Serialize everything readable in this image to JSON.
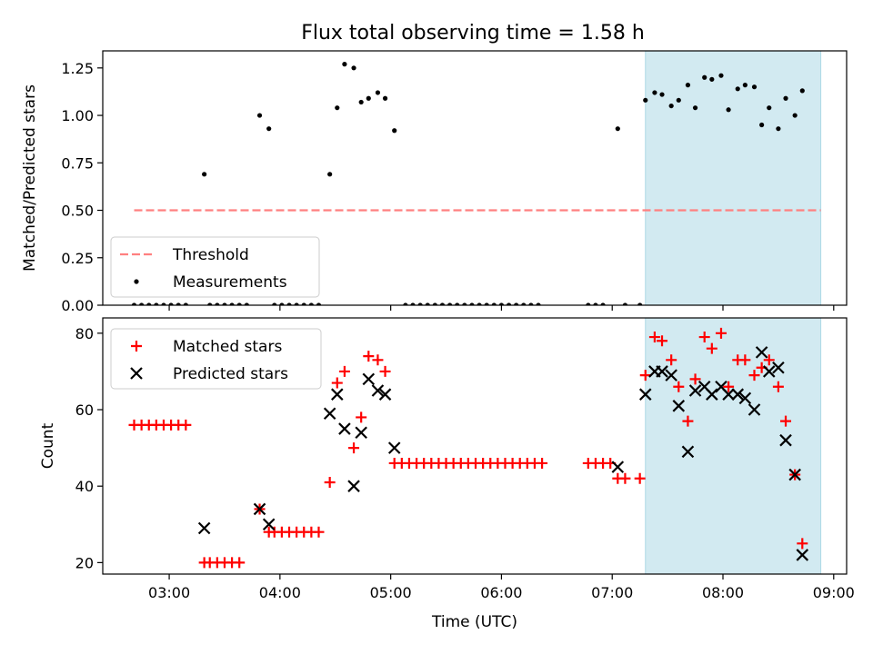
{
  "figure": {
    "title": "Flux total observing time = 1.58 h"
  },
  "chart_data": [
    {
      "type": "scatter",
      "ylabel": "Matched/Predicted stars",
      "ylim": [
        0,
        1.34
      ],
      "xlim": [
        "02:24",
        "09:07"
      ],
      "yticks": [
        0,
        0.25,
        0.5,
        0.75,
        1.0,
        1.25
      ],
      "ytick_labels": [
        "0.00",
        "0.25",
        "0.50",
        "0.75",
        "1.00",
        "1.25"
      ],
      "highlight_span": {
        "x0": "07:18",
        "x1": "08:53",
        "color": "#add8e6"
      },
      "threshold": {
        "name": "Threshold",
        "y": 0.5,
        "x0": "02:41",
        "x1": "08:53",
        "color": "#ff8080",
        "style": "dashed"
      },
      "legend": {
        "placement": "lower-left",
        "entries": [
          "Threshold",
          "Measurements"
        ]
      },
      "series": [
        {
          "name": "Measurements",
          "color": "#000000",
          "marker": "dot",
          "points": [
            {
              "x": "02:41",
              "y": 0
            },
            {
              "x": "02:45",
              "y": 0
            },
            {
              "x": "02:49",
              "y": 0
            },
            {
              "x": "02:53",
              "y": 0
            },
            {
              "x": "02:57",
              "y": 0
            },
            {
              "x": "03:01",
              "y": 0
            },
            {
              "x": "03:05",
              "y": 0
            },
            {
              "x": "03:09",
              "y": 0
            },
            {
              "x": "03:19",
              "y": 0.69
            },
            {
              "x": "03:22",
              "y": 0
            },
            {
              "x": "03:26",
              "y": 0
            },
            {
              "x": "03:30",
              "y": 0
            },
            {
              "x": "03:34",
              "y": 0
            },
            {
              "x": "03:38",
              "y": 0
            },
            {
              "x": "03:42",
              "y": 0
            },
            {
              "x": "03:49",
              "y": 1.0
            },
            {
              "x": "03:54",
              "y": 0.93
            },
            {
              "x": "03:57",
              "y": 0
            },
            {
              "x": "04:01",
              "y": 0
            },
            {
              "x": "04:05",
              "y": 0
            },
            {
              "x": "04:09",
              "y": 0
            },
            {
              "x": "04:13",
              "y": 0
            },
            {
              "x": "04:17",
              "y": 0
            },
            {
              "x": "04:21",
              "y": 0
            },
            {
              "x": "04:27",
              "y": 0.69
            },
            {
              "x": "04:31",
              "y": 1.04
            },
            {
              "x": "04:35",
              "y": 1.27
            },
            {
              "x": "04:40",
              "y": 1.25
            },
            {
              "x": "04:44",
              "y": 1.07
            },
            {
              "x": "04:48",
              "y": 1.09
            },
            {
              "x": "04:53",
              "y": 1.12
            },
            {
              "x": "04:57",
              "y": 1.09
            },
            {
              "x": "05:02",
              "y": 0.92
            },
            {
              "x": "05:08",
              "y": 0
            },
            {
              "x": "05:12",
              "y": 0
            },
            {
              "x": "05:16",
              "y": 0
            },
            {
              "x": "05:20",
              "y": 0
            },
            {
              "x": "05:24",
              "y": 0
            },
            {
              "x": "05:28",
              "y": 0
            },
            {
              "x": "05:32",
              "y": 0
            },
            {
              "x": "05:36",
              "y": 0
            },
            {
              "x": "05:40",
              "y": 0
            },
            {
              "x": "05:44",
              "y": 0
            },
            {
              "x": "05:48",
              "y": 0
            },
            {
              "x": "05:52",
              "y": 0
            },
            {
              "x": "05:56",
              "y": 0
            },
            {
              "x": "06:00",
              "y": 0
            },
            {
              "x": "06:04",
              "y": 0
            },
            {
              "x": "06:08",
              "y": 0
            },
            {
              "x": "06:12",
              "y": 0
            },
            {
              "x": "06:16",
              "y": 0
            },
            {
              "x": "06:20",
              "y": 0
            },
            {
              "x": "06:47",
              "y": 0
            },
            {
              "x": "06:51",
              "y": 0
            },
            {
              "x": "06:55",
              "y": 0
            },
            {
              "x": "07:03",
              "y": 0.93
            },
            {
              "x": "07:07",
              "y": 0
            },
            {
              "x": "07:15",
              "y": 0
            },
            {
              "x": "07:18",
              "y": 1.08
            },
            {
              "x": "07:23",
              "y": 1.12
            },
            {
              "x": "07:27",
              "y": 1.11
            },
            {
              "x": "07:32",
              "y": 1.05
            },
            {
              "x": "07:36",
              "y": 1.08
            },
            {
              "x": "07:41",
              "y": 1.16
            },
            {
              "x": "07:45",
              "y": 1.04
            },
            {
              "x": "07:50",
              "y": 1.2
            },
            {
              "x": "07:54",
              "y": 1.19
            },
            {
              "x": "07:59",
              "y": 1.21
            },
            {
              "x": "08:03",
              "y": 1.03
            },
            {
              "x": "08:08",
              "y": 1.14
            },
            {
              "x": "08:12",
              "y": 1.16
            },
            {
              "x": "08:17",
              "y": 1.15
            },
            {
              "x": "08:21",
              "y": 0.95
            },
            {
              "x": "08:25",
              "y": 1.04
            },
            {
              "x": "08:30",
              "y": 0.93
            },
            {
              "x": "08:34",
              "y": 1.09
            },
            {
              "x": "08:39",
              "y": 1.0
            },
            {
              "x": "08:43",
              "y": 1.13
            }
          ]
        }
      ]
    },
    {
      "type": "scatter",
      "xlabel": "Time (UTC)",
      "ylabel": "Count",
      "ylim": [
        17,
        84
      ],
      "xlim": [
        "02:24",
        "09:07"
      ],
      "yticks": [
        20,
        40,
        60,
        80
      ],
      "ytick_labels": [
        "20",
        "40",
        "60",
        "80"
      ],
      "xticks": [
        "03:00",
        "04:00",
        "05:00",
        "06:00",
        "07:00",
        "08:00",
        "09:00"
      ],
      "xtick_labels": [
        "03:00",
        "04:00",
        "05:00",
        "06:00",
        "07:00",
        "08:00",
        "09:00"
      ],
      "highlight_span": {
        "x0": "07:18",
        "x1": "08:53",
        "color": "#add8e6"
      },
      "legend": {
        "placement": "top-left",
        "entries": [
          "Matched stars",
          "Predicted stars"
        ]
      },
      "series": [
        {
          "name": "Matched stars",
          "color": "#ff0000",
          "marker": "plus",
          "points": [
            {
              "x": "02:41",
              "y": 56
            },
            {
              "x": "02:45",
              "y": 56
            },
            {
              "x": "02:49",
              "y": 56
            },
            {
              "x": "02:53",
              "y": 56
            },
            {
              "x": "02:57",
              "y": 56
            },
            {
              "x": "03:01",
              "y": 56
            },
            {
              "x": "03:05",
              "y": 56
            },
            {
              "x": "03:09",
              "y": 56
            },
            {
              "x": "03:19",
              "y": 20
            },
            {
              "x": "03:22",
              "y": 20
            },
            {
              "x": "03:26",
              "y": 20
            },
            {
              "x": "03:30",
              "y": 20
            },
            {
              "x": "03:34",
              "y": 20
            },
            {
              "x": "03:38",
              "y": 20
            },
            {
              "x": "03:49",
              "y": 34
            },
            {
              "x": "03:54",
              "y": 28
            },
            {
              "x": "03:57",
              "y": 28
            },
            {
              "x": "04:01",
              "y": 28
            },
            {
              "x": "04:05",
              "y": 28
            },
            {
              "x": "04:09",
              "y": 28
            },
            {
              "x": "04:13",
              "y": 28
            },
            {
              "x": "04:17",
              "y": 28
            },
            {
              "x": "04:21",
              "y": 28
            },
            {
              "x": "04:27",
              "y": 41
            },
            {
              "x": "04:31",
              "y": 67
            },
            {
              "x": "04:35",
              "y": 70
            },
            {
              "x": "04:40",
              "y": 50
            },
            {
              "x": "04:44",
              "y": 58
            },
            {
              "x": "04:48",
              "y": 74
            },
            {
              "x": "04:53",
              "y": 73
            },
            {
              "x": "04:57",
              "y": 70
            },
            {
              "x": "05:02",
              "y": 46
            },
            {
              "x": "05:06",
              "y": 46
            },
            {
              "x": "05:10",
              "y": 46
            },
            {
              "x": "05:14",
              "y": 46
            },
            {
              "x": "05:18",
              "y": 46
            },
            {
              "x": "05:22",
              "y": 46
            },
            {
              "x": "05:26",
              "y": 46
            },
            {
              "x": "05:30",
              "y": 46
            },
            {
              "x": "05:34",
              "y": 46
            },
            {
              "x": "05:38",
              "y": 46
            },
            {
              "x": "05:42",
              "y": 46
            },
            {
              "x": "05:46",
              "y": 46
            },
            {
              "x": "05:50",
              "y": 46
            },
            {
              "x": "05:54",
              "y": 46
            },
            {
              "x": "05:58",
              "y": 46
            },
            {
              "x": "06:02",
              "y": 46
            },
            {
              "x": "06:06",
              "y": 46
            },
            {
              "x": "06:10",
              "y": 46
            },
            {
              "x": "06:14",
              "y": 46
            },
            {
              "x": "06:18",
              "y": 46
            },
            {
              "x": "06:22",
              "y": 46
            },
            {
              "x": "06:47",
              "y": 46
            },
            {
              "x": "06:51",
              "y": 46
            },
            {
              "x": "06:55",
              "y": 46
            },
            {
              "x": "06:59",
              "y": 46
            },
            {
              "x": "07:03",
              "y": 42
            },
            {
              "x": "07:07",
              "y": 42
            },
            {
              "x": "07:15",
              "y": 42
            },
            {
              "x": "07:18",
              "y": 69
            },
            {
              "x": "07:23",
              "y": 79
            },
            {
              "x": "07:27",
              "y": 78
            },
            {
              "x": "07:32",
              "y": 73
            },
            {
              "x": "07:36",
              "y": 66
            },
            {
              "x": "07:41",
              "y": 57
            },
            {
              "x": "07:45",
              "y": 68
            },
            {
              "x": "07:50",
              "y": 79
            },
            {
              "x": "07:54",
              "y": 76
            },
            {
              "x": "07:59",
              "y": 80
            },
            {
              "x": "08:03",
              "y": 66
            },
            {
              "x": "08:08",
              "y": 73
            },
            {
              "x": "08:12",
              "y": 73
            },
            {
              "x": "08:17",
              "y": 69
            },
            {
              "x": "08:21",
              "y": 71
            },
            {
              "x": "08:25",
              "y": 73
            },
            {
              "x": "08:30",
              "y": 66
            },
            {
              "x": "08:34",
              "y": 57
            },
            {
              "x": "08:39",
              "y": 43
            },
            {
              "x": "08:43",
              "y": 25
            }
          ]
        },
        {
          "name": "Predicted stars",
          "color": "#000000",
          "marker": "x",
          "points": [
            {
              "x": "03:19",
              "y": 29
            },
            {
              "x": "03:49",
              "y": 34
            },
            {
              "x": "03:54",
              "y": 30
            },
            {
              "x": "04:27",
              "y": 59
            },
            {
              "x": "04:31",
              "y": 64
            },
            {
              "x": "04:35",
              "y": 55
            },
            {
              "x": "04:40",
              "y": 40
            },
            {
              "x": "04:44",
              "y": 54
            },
            {
              "x": "04:48",
              "y": 68
            },
            {
              "x": "04:53",
              "y": 65
            },
            {
              "x": "04:57",
              "y": 64
            },
            {
              "x": "05:02",
              "y": 50
            },
            {
              "x": "07:03",
              "y": 45
            },
            {
              "x": "07:18",
              "y": 64
            },
            {
              "x": "07:23",
              "y": 70
            },
            {
              "x": "07:27",
              "y": 70
            },
            {
              "x": "07:32",
              "y": 69
            },
            {
              "x": "07:36",
              "y": 61
            },
            {
              "x": "07:41",
              "y": 49
            },
            {
              "x": "07:45",
              "y": 65
            },
            {
              "x": "07:50",
              "y": 66
            },
            {
              "x": "07:54",
              "y": 64
            },
            {
              "x": "07:59",
              "y": 66
            },
            {
              "x": "08:03",
              "y": 64
            },
            {
              "x": "08:08",
              "y": 64
            },
            {
              "x": "08:12",
              "y": 63
            },
            {
              "x": "08:17",
              "y": 60
            },
            {
              "x": "08:21",
              "y": 75
            },
            {
              "x": "08:25",
              "y": 70
            },
            {
              "x": "08:30",
              "y": 71
            },
            {
              "x": "08:34",
              "y": 52
            },
            {
              "x": "08:39",
              "y": 43
            },
            {
              "x": "08:43",
              "y": 22
            }
          ]
        }
      ]
    }
  ]
}
